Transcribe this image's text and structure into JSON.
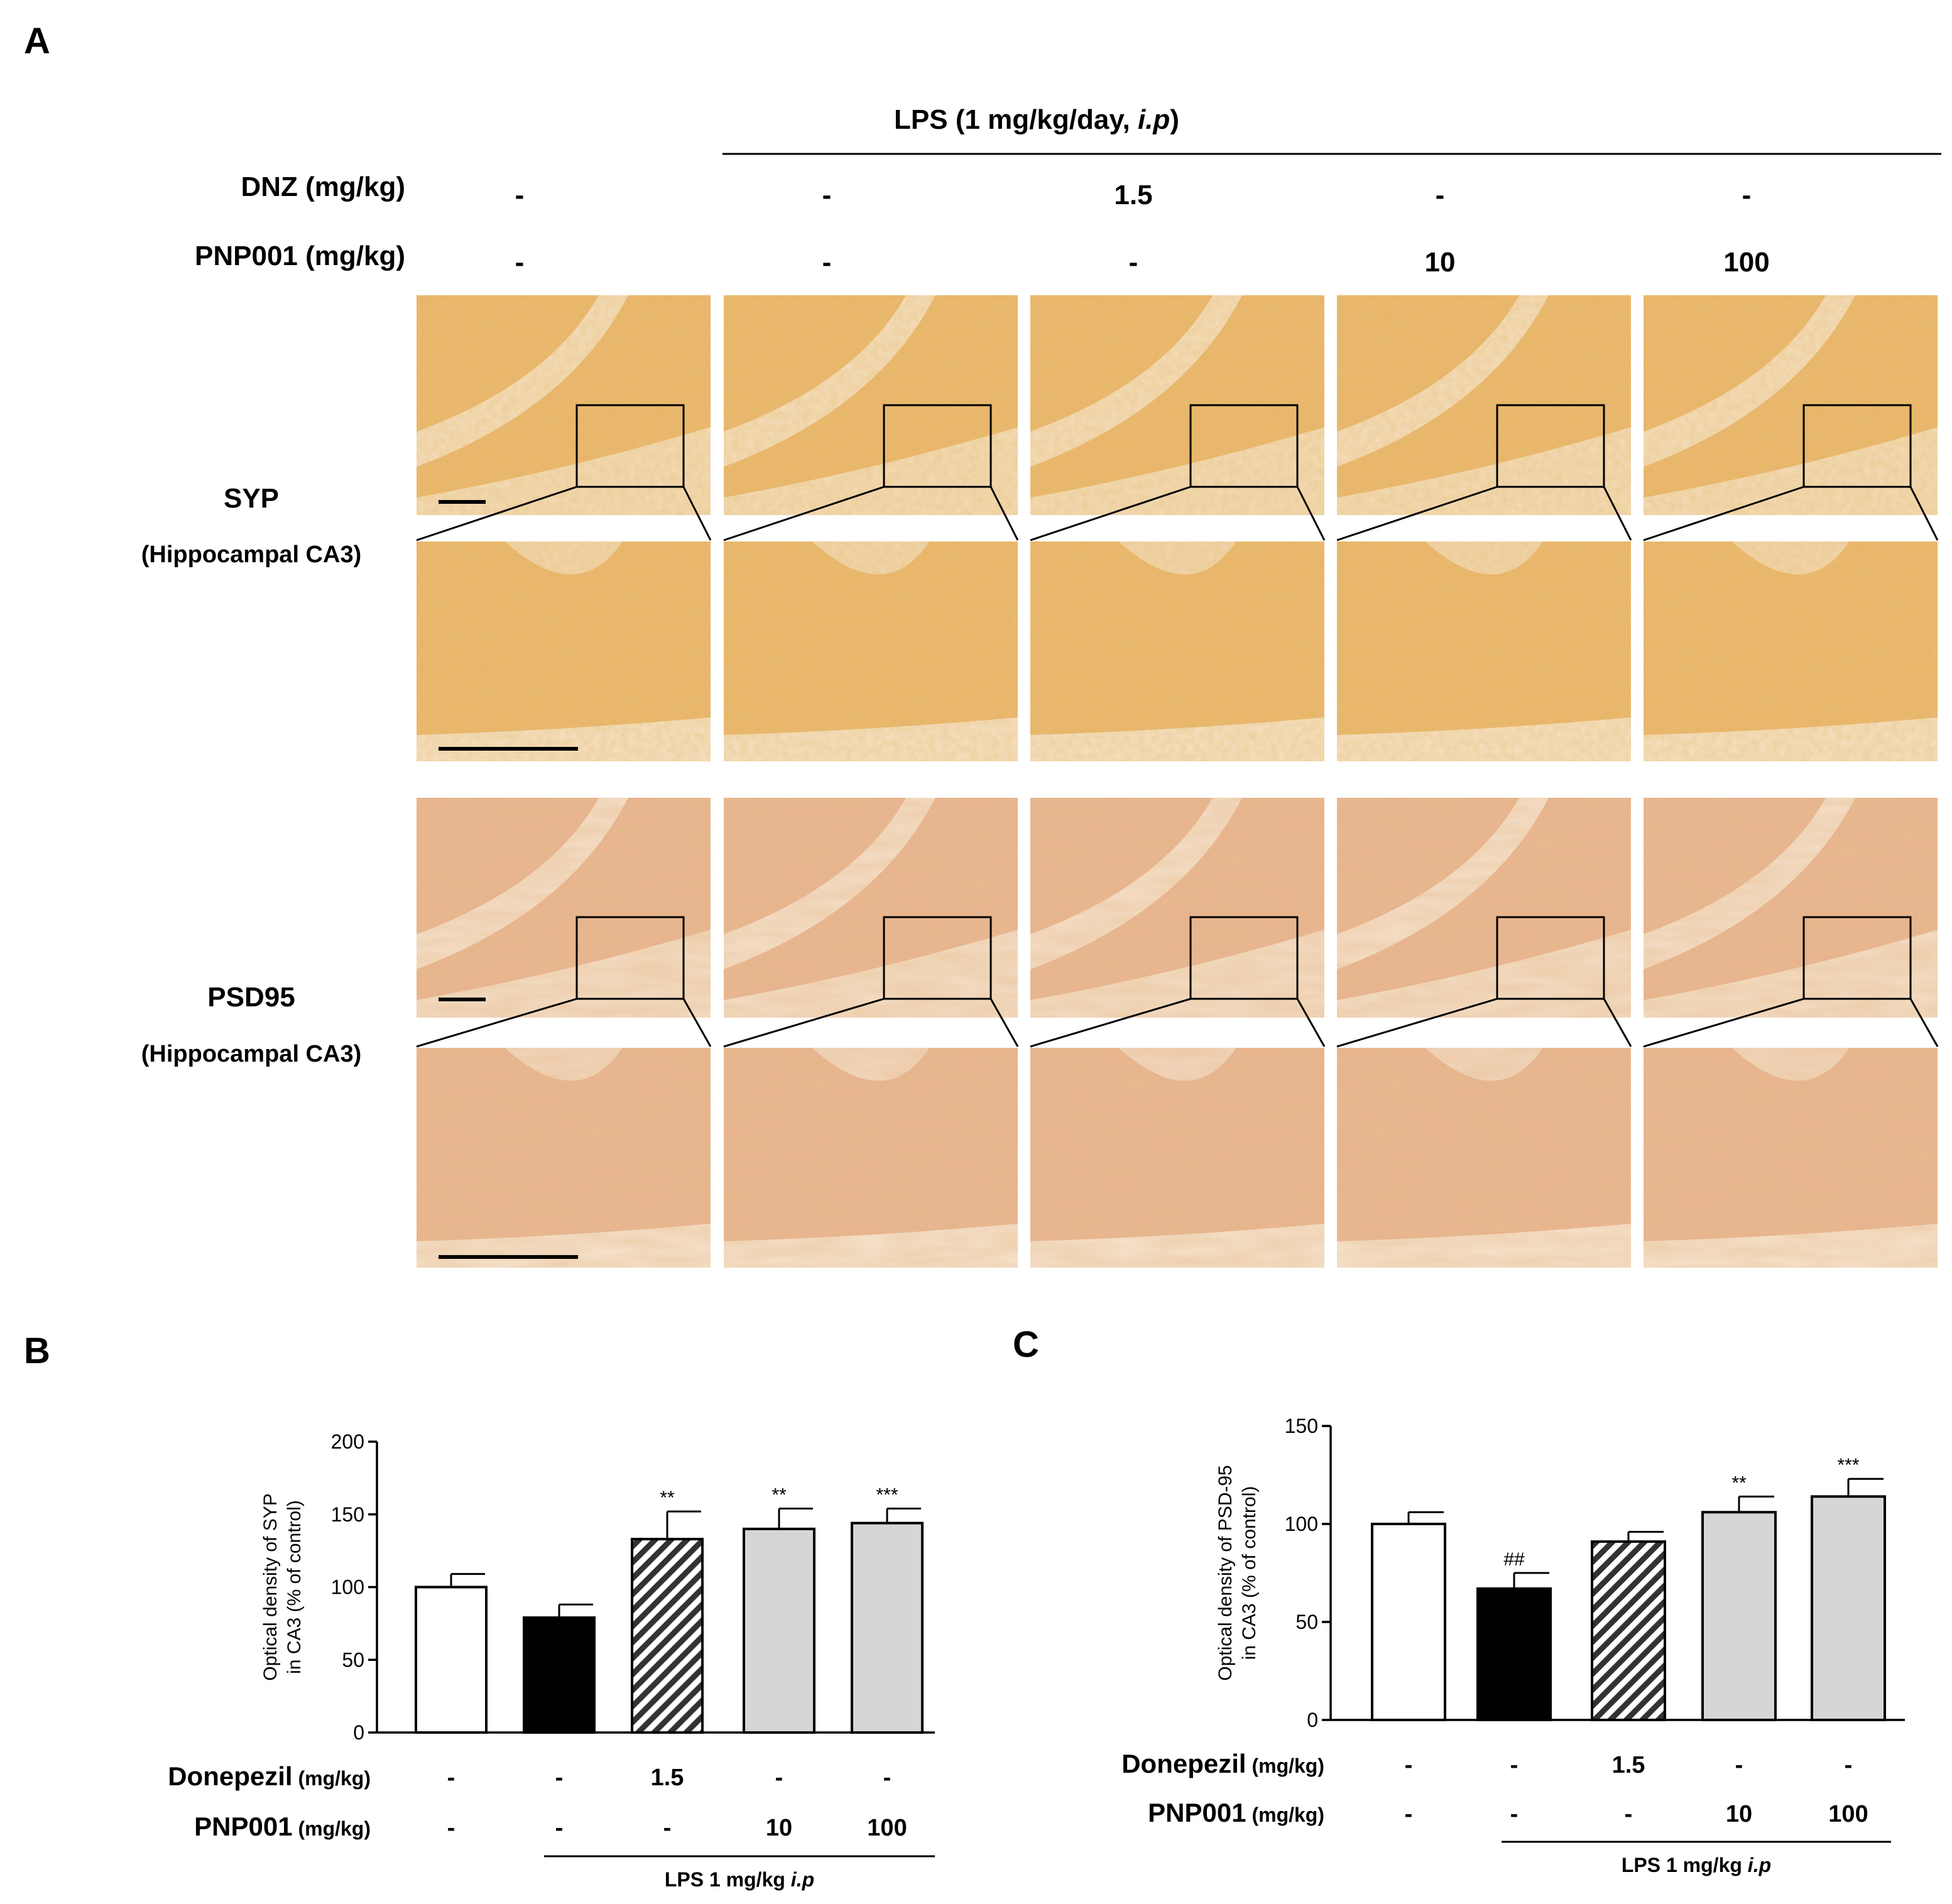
{
  "panel_labels": {
    "a": "A",
    "b": "B",
    "c": "C"
  },
  "panel_a": {
    "lps_header": "LPS (1 mg/kg/day, ",
    "lps_header_italic": "i.p",
    "lps_header_close": ")",
    "row_dnz_label": "DNZ (mg/kg)",
    "row_pnp_label": "PNP001 (mg/kg)",
    "dnz_values": [
      "-",
      "-",
      "1.5",
      "-",
      "-"
    ],
    "pnp_values": [
      "-",
      "-",
      "-",
      "10",
      "100"
    ],
    "stain_syp": "SYP",
    "stain_syp_region": "(Hippocampal CA3)",
    "stain_psd": "PSD95",
    "stain_psd_region": "(Hippocampal CA3)",
    "colors": {
      "stain_syp": "#e9b569",
      "stain_psd": "#e7b48e",
      "background_tissue": "#f7ead6"
    }
  },
  "chart_data": [
    {
      "type": "bar",
      "panel": "B",
      "ylabel_line1": "Optical density of SYP",
      "ylabel_line2": "in CA3 (% of control)",
      "ylim": [
        0,
        200
      ],
      "yticks": [
        "0",
        "50",
        "100",
        "150",
        "200"
      ],
      "ytick_values": [
        0,
        50,
        100,
        150,
        200
      ],
      "values": [
        100,
        79,
        133,
        140,
        144
      ],
      "errors": [
        9,
        9,
        19,
        14,
        10
      ],
      "significance": [
        "",
        "",
        "**",
        "**",
        "***"
      ],
      "bar_styles": [
        "white",
        "black",
        "hatched",
        "gray",
        "gray"
      ],
      "row1_label": "Donepezil",
      "row1_unit": "(mg/kg)",
      "row1_values": [
        "-",
        "-",
        "1.5",
        "-",
        "-"
      ],
      "row2_label": "PNP001",
      "row2_unit": "(mg/kg)",
      "row2_values": [
        "-",
        "-",
        "-",
        "10",
        "100"
      ],
      "group_label": "LPS 1 mg/kg ",
      "group_label_italic": "i.p"
    },
    {
      "type": "bar",
      "panel": "C",
      "ylabel_line1": "Optical density of PSD-95",
      "ylabel_line2": "in CA3 (% of control)",
      "ylim": [
        0,
        150
      ],
      "yticks": [
        "0",
        "50",
        "100",
        "150"
      ],
      "ytick_values": [
        0,
        50,
        100,
        150
      ],
      "values": [
        100,
        67,
        91,
        106,
        114
      ],
      "errors": [
        6,
        8,
        5,
        8,
        9
      ],
      "significance": [
        "",
        "##",
        "",
        "**",
        "***"
      ],
      "bar_styles": [
        "white",
        "black",
        "hatched",
        "gray",
        "gray"
      ],
      "row1_label": "Donepezil",
      "row1_unit": "(mg/kg)",
      "row1_values": [
        "-",
        "-",
        "1.5",
        "-",
        "-"
      ],
      "row2_label": "PNP001",
      "row2_unit": "(mg/kg)",
      "row2_values": [
        "-",
        "-",
        "-",
        "10",
        "100"
      ],
      "group_label": "LPS 1 mg/kg ",
      "group_label_italic": "i.p"
    }
  ]
}
